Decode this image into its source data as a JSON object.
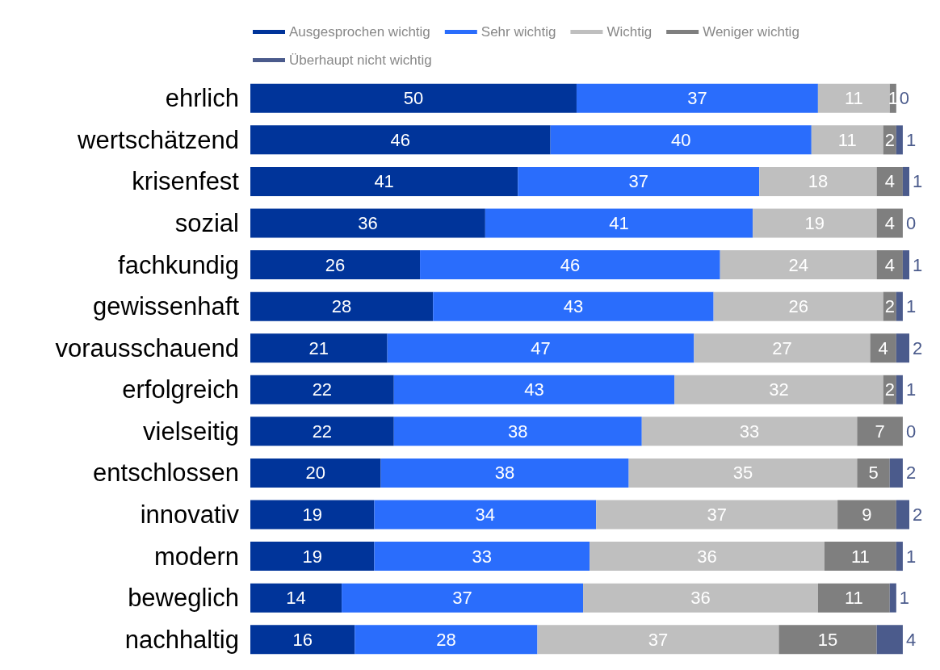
{
  "chart_data": {
    "type": "bar",
    "orientation": "horizontal",
    "stacked": true,
    "data_labels": true,
    "legend": "top",
    "grid": false,
    "tick_labels": "y",
    "xlim": [
      0,
      101
    ],
    "categories": [
      "ehrlich",
      "wertschätzend",
      "krisenfest",
      "sozial",
      "fachkundig",
      "gewissenhaft",
      "vorausschauend",
      "erfolgreich",
      "vielseitig",
      "entschlossen",
      "innovativ",
      "modern",
      "beweglich",
      "nachhaltig"
    ],
    "series": [
      {
        "name": "Ausgesprochen wichtig",
        "color": "#00349a",
        "values": [
          50,
          46,
          41,
          36,
          26,
          28,
          21,
          22,
          22,
          20,
          19,
          19,
          14,
          16
        ]
      },
      {
        "name": "Sehr wichtig",
        "color": "#2a6dfc",
        "values": [
          37,
          40,
          37,
          41,
          46,
          43,
          47,
          43,
          38,
          38,
          34,
          33,
          37,
          28
        ]
      },
      {
        "name": "Wichtig",
        "color": "#bfbfbf",
        "values": [
          11,
          11,
          18,
          19,
          24,
          26,
          27,
          32,
          33,
          35,
          37,
          36,
          36,
          37
        ]
      },
      {
        "name": "Weniger wichtig",
        "color": "#7f7f7f",
        "values": [
          1,
          2,
          4,
          4,
          4,
          2,
          4,
          2,
          7,
          5,
          9,
          11,
          11,
          15
        ]
      },
      {
        "name": "Überhaupt nicht wichtig",
        "color": "#4b5b8c",
        "values": [
          0,
          1,
          1,
          0,
          1,
          1,
          2,
          1,
          0,
          2,
          2,
          1,
          1,
          4
        ]
      }
    ]
  }
}
